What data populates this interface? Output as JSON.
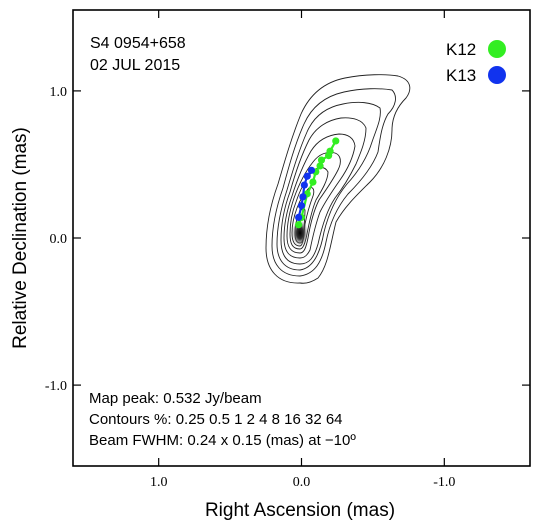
{
  "chart_data": {
    "type": "contour",
    "source_label": "S4 0954+658",
    "date_label": "02 JUL 2015",
    "xlabel": "Right Ascension  (mas)",
    "ylabel": "Relative Declination  (mas)",
    "xlim": [
      1.6,
      -1.6
    ],
    "ylim": [
      -1.55,
      1.55
    ],
    "x_ticks": [
      {
        "value": 1.0,
        "label": "1.0"
      },
      {
        "value": 0.0,
        "label": "0.0"
      },
      {
        "value": -1.0,
        "label": "-1.0"
      }
    ],
    "y_ticks": [
      {
        "value": 1.0,
        "label": "1.0"
      },
      {
        "value": 0.0,
        "label": "0.0"
      },
      {
        "value": -1.0,
        "label": "-1.0"
      }
    ],
    "info_lines": [
      "Map peak: 0.532 Jy/beam",
      "Contours %: 0.25 0.5 1 2 4 8 16 32 64",
      "Beam FWHM: 0.24 x 0.15 (mas) at −10º"
    ],
    "contour_levels_percent": [
      0.25,
      0.5,
      1,
      2,
      4,
      8,
      16,
      32,
      64
    ],
    "legend_position": "top-right",
    "series": [
      {
        "name": "K12",
        "color": "#33ee22",
        "points": [
          {
            "x": 0.02,
            "y": 0.09
          },
          {
            "x": 0.0,
            "y": 0.14
          },
          {
            "x": -0.04,
            "y": 0.3
          },
          {
            "x": -0.08,
            "y": 0.38
          },
          {
            "x": -0.1,
            "y": 0.45
          },
          {
            "x": -0.13,
            "y": 0.49
          },
          {
            "x": -0.14,
            "y": 0.53
          },
          {
            "x": -0.19,
            "y": 0.56
          },
          {
            "x": -0.2,
            "y": 0.59
          },
          {
            "x": -0.24,
            "y": 0.66
          }
        ]
      },
      {
        "name": "K13",
        "color": "#1133ee",
        "points": [
          {
            "x": 0.02,
            "y": 0.14
          },
          {
            "x": 0.0,
            "y": 0.22
          },
          {
            "x": -0.01,
            "y": 0.28
          },
          {
            "x": -0.02,
            "y": 0.36
          },
          {
            "x": -0.04,
            "y": 0.42
          },
          {
            "x": -0.07,
            "y": 0.46
          }
        ]
      }
    ]
  }
}
